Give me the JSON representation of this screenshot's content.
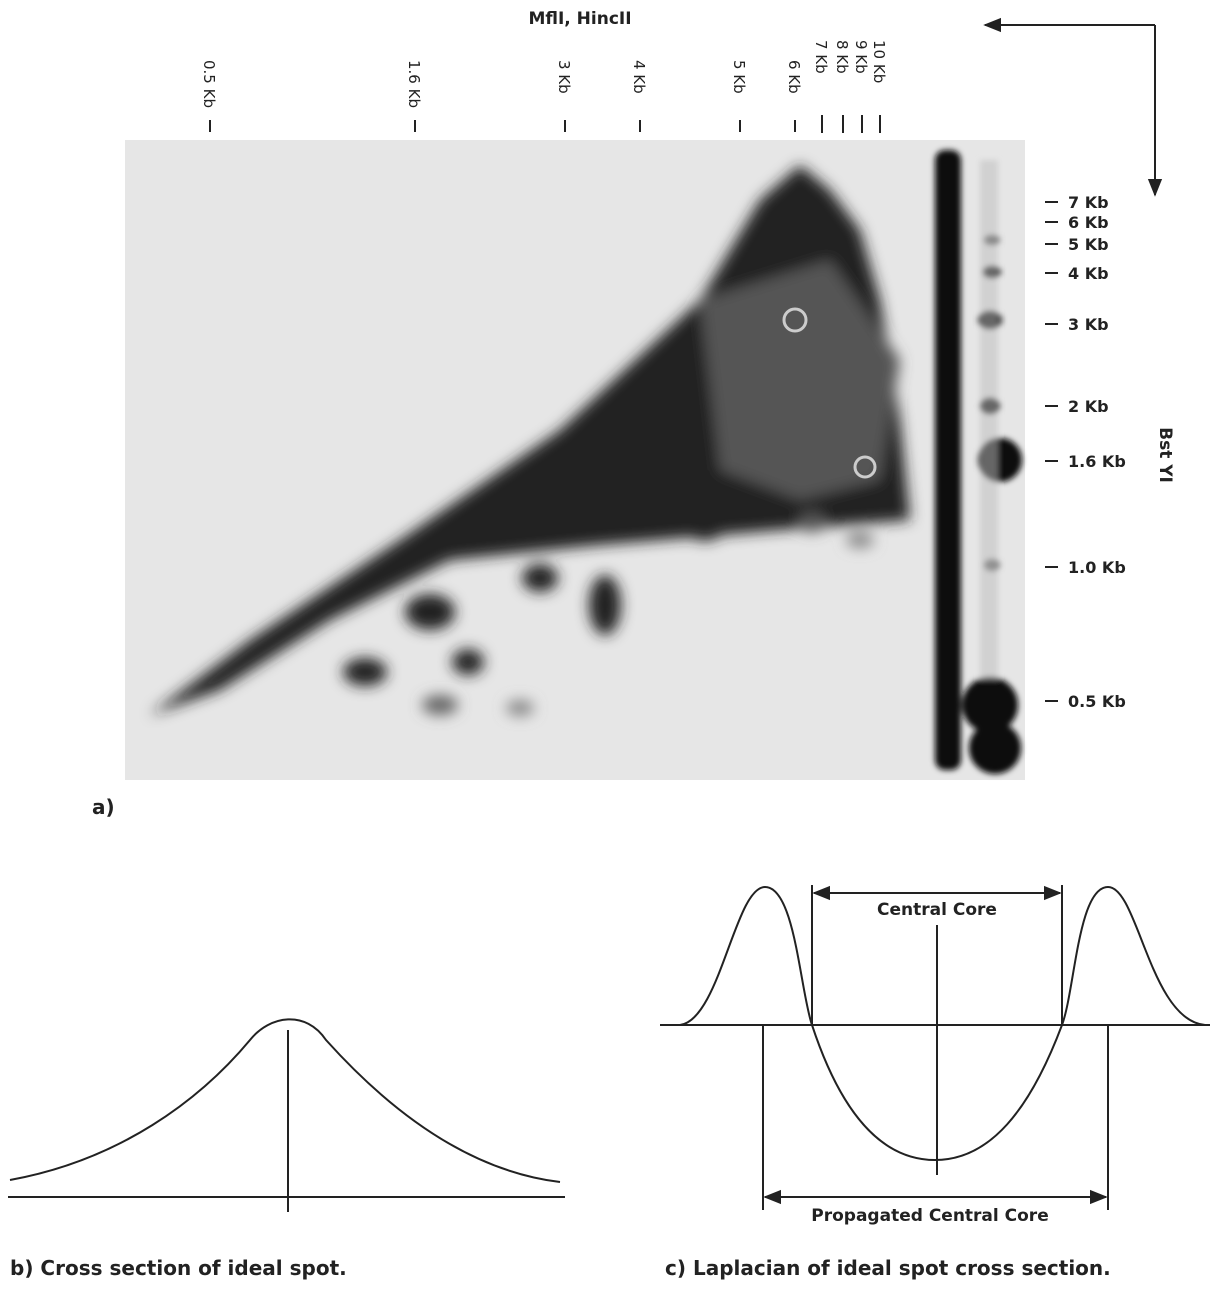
{
  "panel_a": {
    "top_label": "MflI, HincII",
    "side_label": "Bst YI",
    "top_markers": [
      "0.5 Kb",
      "1.6 Kb",
      "3 Kb",
      "4 Kb",
      "5 Kb",
      "6 Kb",
      "7 Kb",
      "8 Kb",
      "9 Kb",
      "10 Kb"
    ],
    "right_markers": [
      "7 Kb",
      "6 Kb",
      "5 Kb",
      "4 Kb",
      "3 Kb",
      "2 Kb",
      "1.6 Kb",
      "1.0 Kb",
      "0.5 Kb"
    ],
    "caption": "a)"
  },
  "panel_b": {
    "caption": "b) Cross section of ideal spot."
  },
  "panel_c": {
    "central_label": "Central Core",
    "propagated_label": "Propagated Central Core",
    "caption": "c) Laplacian of ideal spot cross section."
  }
}
